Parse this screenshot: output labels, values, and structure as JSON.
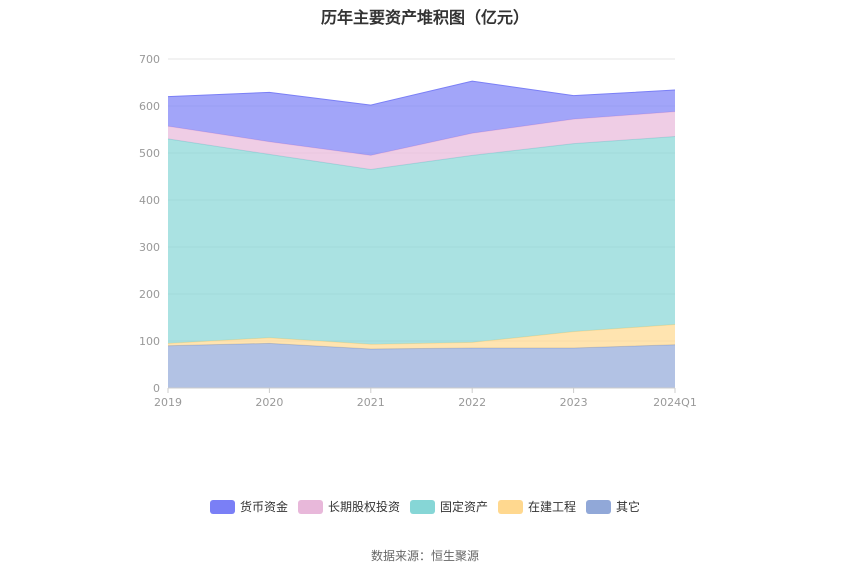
{
  "chart_data": {
    "type": "area",
    "title": "历年主要资产堆积图（亿元）",
    "stacked": true,
    "categories": [
      "2019",
      "2020",
      "2021",
      "2022",
      "2023",
      "2024Q1"
    ],
    "ylim": [
      0,
      700
    ],
    "yticks": [
      0,
      100,
      200,
      300,
      400,
      500,
      600,
      700
    ],
    "grid": true,
    "legend_position": "bottom",
    "series": [
      {
        "name": "其它",
        "color": "#91A8D8",
        "values": [
          90,
          95,
          83,
          85,
          85,
          92
        ]
      },
      {
        "name": "在建工程",
        "color": "#FFD88F",
        "values": [
          5,
          12,
          10,
          12,
          35,
          43
        ]
      },
      {
        "name": "固定资产",
        "color": "#86D6D6",
        "values": [
          435,
          390,
          372,
          398,
          400,
          400
        ]
      },
      {
        "name": "长期股权投资",
        "color": "#E8B8DA",
        "values": [
          27,
          27,
          30,
          47,
          52,
          53
        ]
      },
      {
        "name": "货币资金",
        "color": "#7A7FF6",
        "values": [
          63,
          105,
          107,
          111,
          50,
          46
        ]
      }
    ],
    "source": "数据来源：恒生聚源"
  }
}
